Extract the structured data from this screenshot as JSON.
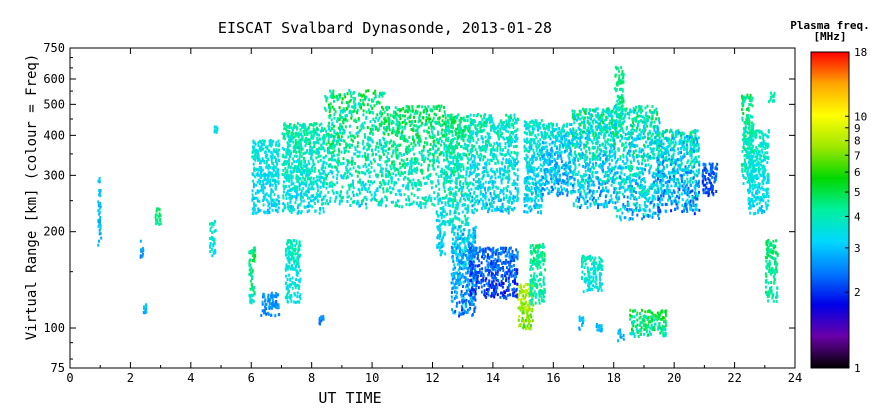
{
  "chart_data": {
    "type": "scatter",
    "title": "EISCAT Svalbard Dynasonde, 2013-01-28",
    "xlabel": "UT TIME",
    "ylabel": "Virtual Range [km] (colour = Freq)",
    "xlim": [
      0,
      24
    ],
    "ylim": [
      75,
      750
    ],
    "y_scale": "log",
    "grid": false,
    "x_ticks": [
      0,
      2,
      4,
      6,
      8,
      10,
      12,
      14,
      16,
      18,
      20,
      22,
      24
    ],
    "y_ticks": [
      75,
      100,
      200,
      300,
      400,
      500,
      600,
      750
    ],
    "colorbar": {
      "label": "Plasma freq. [MHz]",
      "label_lines": [
        "Plasma freq.",
        "[MHz]"
      ],
      "range": [
        1,
        18
      ],
      "scale": "log",
      "ticks": [
        1,
        2,
        3,
        4,
        5,
        6,
        7,
        8,
        9,
        10,
        18
      ],
      "colormap": [
        "#000000",
        "#6a00a8",
        "#0000e8",
        "#0077ff",
        "#00d8ff",
        "#00f0a0",
        "#00d800",
        "#9fe800",
        "#ffff00",
        "#ffa500",
        "#ff0000"
      ]
    },
    "clusters": [
      {
        "t": [
          0.9,
          1.0
        ],
        "r": [
          180,
          300
        ],
        "f": [
          2.6,
          3.4
        ]
      },
      {
        "t": [
          2.3,
          2.4
        ],
        "r": [
          165,
          190
        ],
        "f": [
          2.4,
          3.0
        ]
      },
      {
        "t": [
          2.4,
          2.5
        ],
        "r": [
          112,
          120
        ],
        "f": [
          2.6,
          3.2
        ]
      },
      {
        "t": [
          2.8,
          3.0
        ],
        "r": [
          210,
          240
        ],
        "f": [
          3.8,
          5.2
        ]
      },
      {
        "t": [
          4.6,
          4.8
        ],
        "r": [
          170,
          220
        ],
        "f": [
          3.0,
          4.5
        ]
      },
      {
        "t": [
          4.75,
          4.85
        ],
        "r": [
          400,
          430
        ],
        "f": [
          3.0,
          3.6
        ]
      },
      {
        "t": [
          5.9,
          6.1
        ],
        "r": [
          120,
          180
        ],
        "f": [
          3.5,
          5.5
        ]
      },
      {
        "t": [
          6.0,
          6.9
        ],
        "r": [
          230,
          390
        ],
        "f": [
          2.8,
          4.0
        ]
      },
      {
        "t": [
          6.3,
          6.9
        ],
        "r": [
          110,
          130
        ],
        "f": [
          2.2,
          3.0
        ]
      },
      {
        "t": [
          7.1,
          7.6
        ],
        "r": [
          120,
          190
        ],
        "f": [
          3.0,
          4.5
        ]
      },
      {
        "t": [
          7.0,
          8.4
        ],
        "r": [
          230,
          440
        ],
        "f": [
          2.8,
          5.0
        ]
      },
      {
        "t": [
          8.4,
          10.4
        ],
        "r": [
          240,
          560
        ],
        "f": [
          2.8,
          6.0
        ]
      },
      {
        "t": [
          8.2,
          8.4
        ],
        "r": [
          104,
          110
        ],
        "f": [
          2.2,
          2.8
        ]
      },
      {
        "t": [
          10.4,
          12.4
        ],
        "r": [
          240,
          500
        ],
        "f": [
          3.0,
          5.8
        ]
      },
      {
        "t": [
          12.1,
          12.4
        ],
        "r": [
          170,
          240
        ],
        "f": [
          2.6,
          4.0
        ]
      },
      {
        "t": [
          12.4,
          13.2
        ],
        "r": [
          210,
          470
        ],
        "f": [
          2.8,
          5.5
        ]
      },
      {
        "t": [
          12.6,
          13.4
        ],
        "r": [
          110,
          210
        ],
        "f": [
          2.0,
          4.0
        ]
      },
      {
        "t": [
          13.2,
          14.8
        ],
        "r": [
          125,
          180
        ],
        "f": [
          1.7,
          2.8
        ]
      },
      {
        "t": [
          13.2,
          14.8
        ],
        "r": [
          230,
          470
        ],
        "f": [
          2.5,
          5.0
        ]
      },
      {
        "t": [
          14.8,
          15.3
        ],
        "r": [
          100,
          140
        ],
        "f": [
          6.0,
          9.5
        ]
      },
      {
        "t": [
          15.0,
          15.6
        ],
        "r": [
          230,
          450
        ],
        "f": [
          2.5,
          4.5
        ]
      },
      {
        "t": [
          15.2,
          15.7
        ],
        "r": [
          120,
          185
        ],
        "f": [
          3.5,
          5.0
        ]
      },
      {
        "t": [
          15.6,
          16.6
        ],
        "r": [
          260,
          440
        ],
        "f": [
          2.2,
          4.5
        ]
      },
      {
        "t": [
          16.6,
          18.0
        ],
        "r": [
          240,
          490
        ],
        "f": [
          2.2,
          5.5
        ]
      },
      {
        "t": [
          16.9,
          17.6
        ],
        "r": [
          130,
          170
        ],
        "f": [
          3.0,
          4.5
        ]
      },
      {
        "t": [
          16.8,
          17.0
        ],
        "r": [
          100,
          110
        ],
        "f": [
          2.6,
          3.2
        ]
      },
      {
        "t": [
          17.4,
          17.6
        ],
        "r": [
          98,
          104
        ],
        "f": [
          2.6,
          3.2
        ]
      },
      {
        "t": [
          18.0,
          18.3
        ],
        "r": [
          420,
          660
        ],
        "f": [
          3.5,
          5.5
        ]
      },
      {
        "t": [
          18.0,
          19.5
        ],
        "r": [
          220,
          500
        ],
        "f": [
          2.2,
          5.5
        ]
      },
      {
        "t": [
          18.1,
          18.3
        ],
        "r": [
          92,
          100
        ],
        "f": [
          2.6,
          3.2
        ]
      },
      {
        "t": [
          18.5,
          19.7
        ],
        "r": [
          95,
          115
        ],
        "f": [
          3.0,
          7.0
        ]
      },
      {
        "t": [
          19.4,
          20.8
        ],
        "r": [
          230,
          420
        ],
        "f": [
          1.9,
          5.0
        ]
      },
      {
        "t": [
          20.9,
          21.4
        ],
        "r": [
          260,
          330
        ],
        "f": [
          1.8,
          2.6
        ]
      },
      {
        "t": [
          22.2,
          22.6
        ],
        "r": [
          280,
          540
        ],
        "f": [
          3.0,
          5.5
        ]
      },
      {
        "t": [
          22.4,
          23.1
        ],
        "r": [
          230,
          420
        ],
        "f": [
          2.8,
          4.5
        ]
      },
      {
        "t": [
          23.0,
          23.4
        ],
        "r": [
          120,
          190
        ],
        "f": [
          3.5,
          5.5
        ]
      },
      {
        "t": [
          23.1,
          23.3
        ],
        "r": [
          510,
          550
        ],
        "f": [
          3.8,
          4.6
        ]
      }
    ]
  }
}
